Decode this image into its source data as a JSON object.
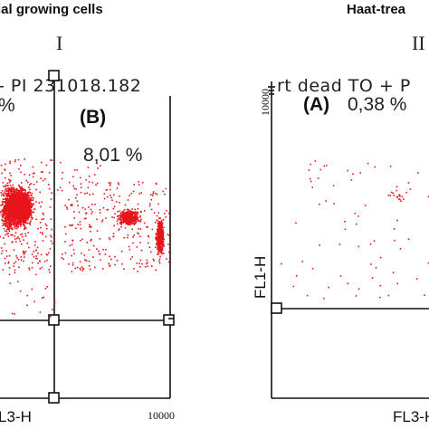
{
  "panels": [
    {
      "title": "ial growing cells",
      "roman": "I",
      "header": "- PI 231018.182",
      "quadrants": [
        {
          "label": "",
          "percent": "%"
        },
        {
          "label": "(B)",
          "percent": "8,01 %"
        }
      ],
      "xlabel": "L3-H",
      "xtick_max": "10000"
    },
    {
      "title": "Haat-trea",
      "roman": "II",
      "header": "rt dead TO + P",
      "quadrants": [
        {
          "label": "(A)",
          "percent": "0,38 %"
        }
      ],
      "ylabel": "FL1-H",
      "ytick_max": "10000",
      "xlabel": "FL3-H"
    }
  ],
  "colors": {
    "dots": "#e8141c",
    "axes": "#111111",
    "text": "#222222"
  },
  "chart_data": {
    "type": "scatter",
    "description_free": true,
    "panels": [
      {
        "xlabel": "L3-H",
        "scale": "log",
        "quadrant_percentages": {
          "upper_left": "%",
          "upper_right_B": "8,01 %"
        },
        "clusters": [
          {
            "region": "upper-left",
            "density": "dense"
          },
          {
            "region": "upper-right",
            "density": "medium"
          }
        ]
      },
      {
        "ylabel": "FL1-H",
        "xlabel": "FL3-H",
        "scale": "log",
        "quadrant_percentages": {
          "upper_left_A": "0,38 %"
        },
        "clusters": [
          {
            "region": "upper",
            "density": "sparse"
          }
        ]
      }
    ]
  }
}
